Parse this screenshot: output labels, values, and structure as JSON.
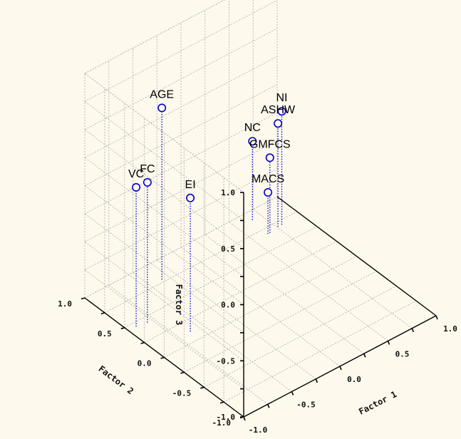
{
  "chart_data": {
    "type": "scatter",
    "projection": "3d",
    "title": "",
    "xlabel": "Factor 1",
    "ylabel": "Factor 2",
    "zlabel": "Factor 3",
    "xlim": [
      -1.0,
      1.0
    ],
    "ylim": [
      -1.0,
      1.0
    ],
    "zlim": [
      -1.0,
      1.0
    ],
    "grid": true,
    "x_ticks": [
      "-1.0",
      "-0.5",
      "0.0",
      "0.5",
      "1.0"
    ],
    "y_ticks": [
      "-1.0",
      "-0.5",
      "0.0",
      "0.5",
      "1.0"
    ],
    "z_ticks": [
      "-1.0",
      "-0.5",
      "0.0",
      "0.5",
      "1.0"
    ],
    "marker_color": "#0000cc",
    "points": [
      {
        "label": "AGE",
        "x": -0.38,
        "y": 0.78,
        "z": 0.53
      },
      {
        "label": "FC",
        "x": -0.82,
        "y": 0.43,
        "z": 0.25
      },
      {
        "label": "VC",
        "x": -0.92,
        "y": 0.45,
        "z": 0.24
      },
      {
        "label": "EI",
        "x": -0.63,
        "y": 0.12,
        "z": 0.19
      },
      {
        "label": "NI",
        "x": 0.8,
        "y": 0.7,
        "z": 0.01
      },
      {
        "label": "ASHW",
        "x": 0.76,
        "y": 0.7,
        "z": -0.08
      },
      {
        "label": "GMFCS",
        "x": 0.66,
        "y": 0.68,
        "z": -0.33
      },
      {
        "label": "NC",
        "x": 0.66,
        "y": 0.9,
        "z": -0.3
      },
      {
        "label": "MACS",
        "x": 0.64,
        "y": 0.68,
        "z": -0.63
      }
    ]
  }
}
